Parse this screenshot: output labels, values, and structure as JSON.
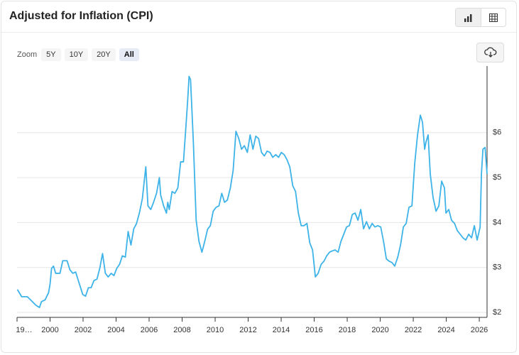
{
  "ui": {
    "zoom_label": "Zoom",
    "zoom_options": [
      "5Y",
      "10Y",
      "20Y",
      "All"
    ]
  },
  "chart_data": {
    "type": "line",
    "title": "Adjusted for Inflation (CPI)",
    "color": "#3db3e8",
    "x": [
      1998.02,
      1998.28,
      1998.62,
      1998.93,
      1999.14,
      1999.36,
      1999.48,
      1999.7,
      1999.91,
      2000.0,
      2000.09,
      2000.21,
      2000.34,
      2000.6,
      2000.77,
      2001.03,
      2001.2,
      2001.38,
      2001.55,
      2001.72,
      2001.98,
      2002.15,
      2002.32,
      2002.49,
      2002.66,
      2002.84,
      2003.01,
      2003.18,
      2003.35,
      2003.52,
      2003.7,
      2003.87,
      2004.04,
      2004.21,
      2004.38,
      2004.56,
      2004.73,
      2004.9,
      2005.07,
      2005.24,
      2005.41,
      2005.59,
      2005.8,
      2005.93,
      2006.1,
      2006.27,
      2006.45,
      2006.62,
      2006.7,
      2006.88,
      2007.05,
      2007.13,
      2007.22,
      2007.39,
      2007.56,
      2007.74,
      2007.91,
      2008.08,
      2008.21,
      2008.34,
      2008.42,
      2008.51,
      2008.68,
      2008.85,
      2009.02,
      2009.2,
      2009.37,
      2009.54,
      2009.71,
      2009.88,
      2010.06,
      2010.23,
      2010.4,
      2010.57,
      2010.74,
      2010.92,
      2011.09,
      2011.26,
      2011.43,
      2011.6,
      2011.77,
      2011.95,
      2012.12,
      2012.29,
      2012.46,
      2012.63,
      2012.81,
      2012.98,
      2013.15,
      2013.32,
      2013.49,
      2013.67,
      2013.84,
      2014.01,
      2014.18,
      2014.35,
      2014.52,
      2014.7,
      2014.87,
      2015.04,
      2015.21,
      2015.38,
      2015.56,
      2015.73,
      2015.9,
      2016.07,
      2016.24,
      2016.42,
      2016.59,
      2016.76,
      2016.93,
      2017.1,
      2017.27,
      2017.45,
      2017.62,
      2017.79,
      2017.96,
      2018.13,
      2018.31,
      2018.48,
      2018.65,
      2018.82,
      2018.99,
      2019.17,
      2019.34,
      2019.51,
      2019.68,
      2019.85,
      2020.03,
      2020.2,
      2020.37,
      2020.54,
      2020.71,
      2020.88,
      2021.06,
      2021.23,
      2021.4,
      2021.57,
      2021.74,
      2021.92,
      2022.09,
      2022.26,
      2022.43,
      2022.56,
      2022.69,
      2022.77,
      2022.9,
      2023.03,
      2023.2,
      2023.38,
      2023.55,
      2023.72,
      2023.89,
      2023.98,
      2024.15,
      2024.32,
      2024.5,
      2024.67,
      2024.84,
      2025.01,
      2025.18,
      2025.36,
      2025.53,
      2025.7,
      2025.87,
      2026.05,
      2026.13,
      2026.22,
      2026.35,
      2026.47
    ],
    "values": [
      2.51,
      2.35,
      2.35,
      2.24,
      2.16,
      2.11,
      2.24,
      2.28,
      2.44,
      2.63,
      2.98,
      3.03,
      2.87,
      2.87,
      3.15,
      3.15,
      2.95,
      2.87,
      2.9,
      2.7,
      2.4,
      2.36,
      2.55,
      2.55,
      2.71,
      2.74,
      2.98,
      3.31,
      2.87,
      2.79,
      2.87,
      2.82,
      2.98,
      3.07,
      3.26,
      3.23,
      3.8,
      3.5,
      3.86,
      3.98,
      4.21,
      4.53,
      5.24,
      4.37,
      4.29,
      4.45,
      4.65,
      5.0,
      4.61,
      4.37,
      4.21,
      4.45,
      4.29,
      4.69,
      4.65,
      4.77,
      5.35,
      5.35,
      6.03,
      6.74,
      7.25,
      7.18,
      5.79,
      4.05,
      3.58,
      3.34,
      3.58,
      3.85,
      3.93,
      4.25,
      4.34,
      4.37,
      4.65,
      4.45,
      4.5,
      4.77,
      5.16,
      6.03,
      5.87,
      5.63,
      5.71,
      5.56,
      5.95,
      5.63,
      5.92,
      5.87,
      5.56,
      5.48,
      5.59,
      5.56,
      5.45,
      5.51,
      5.45,
      5.56,
      5.51,
      5.4,
      5.24,
      4.82,
      4.69,
      4.21,
      3.93,
      3.93,
      3.98,
      3.55,
      3.39,
      2.79,
      2.87,
      3.07,
      3.14,
      3.26,
      3.34,
      3.37,
      3.39,
      3.34,
      3.58,
      3.74,
      3.9,
      3.93,
      4.18,
      4.21,
      4.05,
      4.29,
      3.86,
      4.02,
      3.86,
      3.98,
      3.9,
      3.93,
      3.9,
      3.58,
      3.19,
      3.14,
      3.11,
      3.03,
      3.23,
      3.5,
      3.9,
      3.98,
      4.34,
      4.37,
      5.32,
      5.95,
      6.39,
      6.23,
      5.63,
      5.79,
      5.95,
      5.08,
      4.56,
      4.25,
      4.37,
      4.92,
      4.77,
      4.21,
      4.29,
      4.05,
      3.98,
      3.82,
      3.74,
      3.66,
      3.61,
      3.74,
      3.66,
      3.93,
      3.61,
      3.9,
      5.08,
      5.63,
      5.67,
      5.08
    ],
    "xlim": [
      1998,
      2026.47
    ],
    "xticks": [
      {
        "value": 1998,
        "label": "19…"
      },
      2000,
      2002,
      2004,
      2006,
      2008,
      2010,
      2012,
      2014,
      2016,
      2018,
      2020,
      2022,
      2024,
      2026
    ],
    "ylim": [
      1.89,
      7.45
    ],
    "yticks": [
      {
        "value": 2,
        "label": "$2"
      },
      {
        "value": 3,
        "label": "$3"
      },
      {
        "value": 4,
        "label": "$4"
      },
      {
        "value": 5,
        "label": "$5"
      },
      {
        "value": 6,
        "label": "$6"
      }
    ],
    "grid": true
  }
}
